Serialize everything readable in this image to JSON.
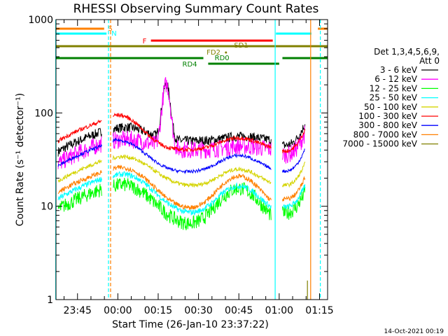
{
  "chart_data": {
    "type": "line",
    "title": "RHESSI Observing Summary Count Rates",
    "xlabel": "Start Time (26-Jan-10 23:37:22)",
    "ylabel": "Count Rate (s⁻¹ detector⁻¹)",
    "y_scale": "log",
    "ylim": [
      1,
      1000
    ],
    "y_ticks": [
      "1",
      "10",
      "100",
      "1000"
    ],
    "x_range_minutes": [
      "23:37",
      "01:18"
    ],
    "x_ticks": [
      "23:45",
      "00:00",
      "00:15",
      "00:30",
      "00:45",
      "01:00",
      "01:15"
    ],
    "legend_header": [
      "Det 1,3,4,5,6,9,",
      "Att 0"
    ],
    "legend_placement": "right",
    "grid": false,
    "footer_date": "14-Oct-2021 00:19",
    "series": [
      {
        "name": "3 - 6 keV",
        "color": "#000000"
      },
      {
        "name": "6 - 12 keV",
        "color": "#ff00ff"
      },
      {
        "name": "12 - 25 keV",
        "color": "#00ff00"
      },
      {
        "name": "25 - 50 keV",
        "color": "#00ffff"
      },
      {
        "name": "50 - 100 keV",
        "color": "#d4d400"
      },
      {
        "name": "100 - 300 keV",
        "color": "#ff0000"
      },
      {
        "name": "300 - 800 keV",
        "color": "#0000ff"
      },
      {
        "name": "800 - 7000 keV",
        "color": "#ff8000"
      },
      {
        "name": "7000 - 15000 keV",
        "color": "#808000"
      }
    ],
    "flag_labels": [
      "S",
      "N",
      "F",
      "SD1",
      "FD2",
      "RD0",
      "RD4"
    ]
  }
}
